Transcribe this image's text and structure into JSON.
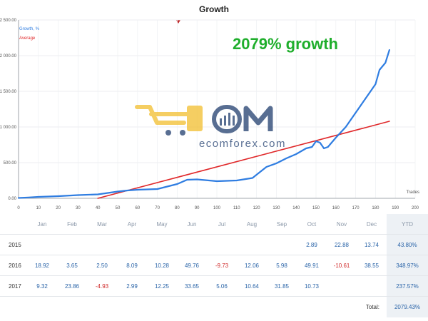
{
  "chart_data": {
    "type": "line",
    "title": "Growth",
    "xlabel": "Trades",
    "ylabel": "",
    "xlim": [
      0,
      200
    ],
    "ylim": [
      0,
      2500
    ],
    "x_ticks": [
      0,
      10,
      20,
      30,
      40,
      50,
      60,
      70,
      80,
      90,
      100,
      110,
      120,
      130,
      140,
      150,
      160,
      170,
      180,
      190,
      200
    ],
    "y_ticks": [
      0,
      500,
      1000,
      1500,
      2000,
      2500
    ],
    "y_tick_labels": [
      "0.00",
      "500.00",
      "1 000.00",
      "1 500.00",
      "2 000.00",
      "2 500.00"
    ],
    "grid": true,
    "legend": "top-left",
    "annotation": "2079% growth",
    "series": [
      {
        "name": "Growth, %",
        "color": "#2f7de1",
        "x": [
          0,
          5,
          10,
          20,
          30,
          40,
          45,
          50,
          55,
          60,
          70,
          80,
          85,
          90,
          100,
          110,
          118,
          120,
          125,
          130,
          135,
          140,
          145,
          148,
          150,
          152,
          154,
          156,
          160,
          165,
          170,
          175,
          180,
          182,
          185,
          187
        ],
        "y": [
          5,
          12,
          20,
          30,
          45,
          55,
          75,
          95,
          110,
          120,
          130,
          200,
          260,
          265,
          240,
          250,
          285,
          330,
          440,
          490,
          560,
          620,
          700,
          720,
          800,
          780,
          700,
          720,
          850,
          1000,
          1200,
          1400,
          1600,
          1800,
          1900,
          2079
        ]
      },
      {
        "name": "Average",
        "color": "#e0282a",
        "x": [
          40,
          187
        ],
        "y": [
          0,
          1080
        ]
      }
    ]
  },
  "logo": {
    "word": "Ecom",
    "domain": "ecomforex.com"
  },
  "colors": {
    "positive": "#2a64a8",
    "negative": "#d02a2a",
    "ytd_background": "#edf1f5",
    "annotation": "#1fae2c"
  },
  "table": {
    "headers": [
      "",
      "Jan",
      "Feb",
      "Mar",
      "Apr",
      "May",
      "Jun",
      "Jul",
      "Aug",
      "Sep",
      "Oct",
      "Nov",
      "Dec",
      "YTD"
    ],
    "rows": [
      {
        "year": "2015",
        "cells": [
          "",
          "",
          "",
          "",
          "",
          "",
          "",
          "",
          "",
          "2.89",
          "22.88",
          "13.74"
        ],
        "ytd": "43.80%"
      },
      {
        "year": "2016",
        "cells": [
          "18.92",
          "3.65",
          "2.50",
          "8.09",
          "10.28",
          "49.76",
          "-9.73",
          "12.06",
          "5.98",
          "49.91",
          "-10.61",
          "38.55"
        ],
        "ytd": "348.97%"
      },
      {
        "year": "2017",
        "cells": [
          "9.32",
          "23.86",
          "-4.93",
          "2.99",
          "12.25",
          "33.65",
          "5.06",
          "10.64",
          "31.85",
          "10.73",
          "",
          ""
        ],
        "ytd": "237.57%"
      }
    ],
    "total_label": "Total:",
    "total_value": "2079.43%"
  }
}
